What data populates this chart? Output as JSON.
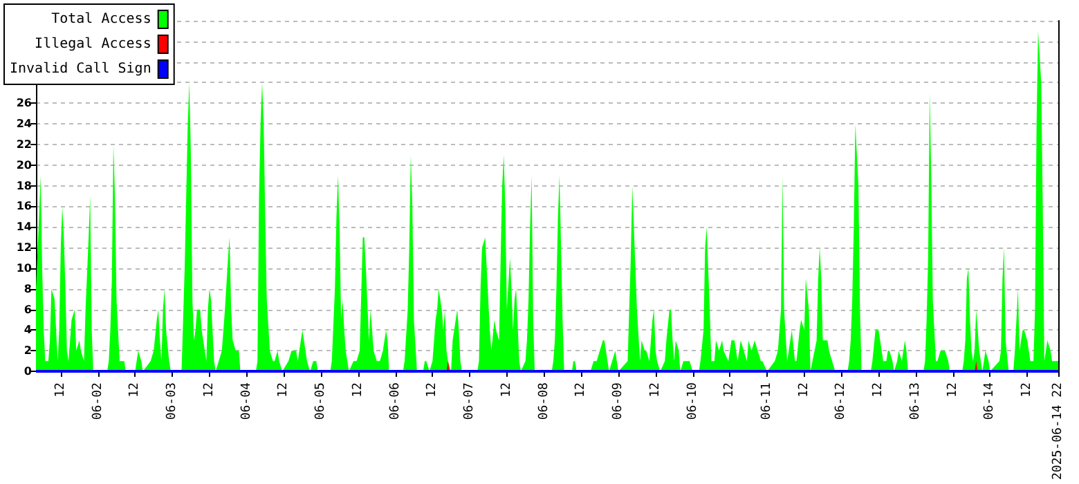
{
  "chart_data": {
    "type": "area",
    "series": [
      {
        "name": "Total Access",
        "color": "#00ff00",
        "x": [
          "2025-06-01T04:00",
          "2025-06-01T05:00",
          "2025-06-01T05:30",
          "2025-06-01T06:00",
          "2025-06-01T06:30",
          "2025-06-01T07:00",
          "2025-06-01T08:00",
          "2025-06-01T08:30",
          "2025-06-01T09:00",
          "2025-06-01T10:00",
          "2025-06-01T10:30",
          "2025-06-01T11:00",
          "2025-06-01T11:30",
          "2025-06-01T12:00",
          "2025-06-01T12:30",
          "2025-06-01T13:00",
          "2025-06-01T13:30",
          "2025-06-01T14:00",
          "2025-06-01T14:30",
          "2025-06-01T15:30",
          "2025-06-01T16:30",
          "2025-06-01T17:00",
          "2025-06-01T18:00",
          "2025-06-01T18:30",
          "2025-06-01T19:30",
          "2025-06-01T20:00",
          "2025-06-01T21:00",
          "2025-06-01T21:30",
          "2025-06-01T22:00",
          "2025-06-01T22:30",
          "2025-06-02T03:00",
          "2025-06-02T03:30",
          "2025-06-02T04:00",
          "2025-06-02T04:30",
          "2025-06-02T05:00",
          "2025-06-02T05:30",
          "2025-06-02T06:00",
          "2025-06-02T07:00",
          "2025-06-02T08:30",
          "2025-06-02T09:00",
          "2025-06-02T12:00",
          "2025-06-02T12:30",
          "2025-06-02T13:00",
          "2025-06-02T14:00",
          "2025-06-02T14:30",
          "2025-06-02T17:00",
          "2025-06-02T18:00",
          "2025-06-02T19:00",
          "2025-06-02T19:30",
          "2025-06-02T20:00",
          "2025-06-02T20:30",
          "2025-06-02T21:00",
          "2025-06-02T21:30",
          "2025-06-02T22:00",
          "2025-06-02T23:00",
          "2025-06-02T23:30",
          "2025-06-03T03:00",
          "2025-06-03T03:30",
          "2025-06-03T04:00",
          "2025-06-03T04:30",
          "2025-06-03T05:00",
          "2025-06-03T05:30",
          "2025-06-03T06:00",
          "2025-06-03T06:30",
          "2025-06-03T07:00",
          "2025-06-03T07:30",
          "2025-06-03T08:00",
          "2025-06-03T09:00",
          "2025-06-03T09:30",
          "2025-06-03T10:30",
          "2025-06-03T11:00",
          "2025-06-03T11:30",
          "2025-06-03T12:00",
          "2025-06-03T12:30",
          "2025-06-03T13:30",
          "2025-06-03T14:00",
          "2025-06-03T15:00",
          "2025-06-03T16:00",
          "2025-06-03T17:00",
          "2025-06-03T18:00",
          "2025-06-03T18:30",
          "2025-06-03T19:00",
          "2025-06-03T19:30",
          "2025-06-03T20:30",
          "2025-06-03T21:30",
          "2025-06-03T22:00",
          "2025-06-04T03:00",
          "2025-06-04T03:30",
          "2025-06-04T04:00",
          "2025-06-04T04:30",
          "2025-06-04T05:00",
          "2025-06-04T05:30",
          "2025-06-04T06:00",
          "2025-06-04T06:30",
          "2025-06-04T07:30",
          "2025-06-04T08:30",
          "2025-06-04T09:00",
          "2025-06-04T10:00",
          "2025-06-04T10:30",
          "2025-06-04T11:30",
          "2025-06-04T13:30",
          "2025-06-04T14:30",
          "2025-06-04T16:00",
          "2025-06-04T16:30",
          "2025-06-04T17:30",
          "2025-06-04T18:00",
          "2025-06-04T18:30",
          "2025-06-04T19:30",
          "2025-06-04T20:30",
          "2025-06-04T21:30",
          "2025-06-04T22:30",
          "2025-06-04T23:00",
          "2025-06-05T03:00",
          "2025-06-05T03:30",
          "2025-06-05T04:30",
          "2025-06-05T05:00",
          "2025-06-05T05:30",
          "2025-06-05T06:00",
          "2025-06-05T06:30",
          "2025-06-05T07:00",
          "2025-06-05T07:30",
          "2025-06-05T08:00",
          "2025-06-05T09:00",
          "2025-06-05T10:30",
          "2025-06-05T11:30",
          "2025-06-05T12:30",
          "2025-06-05T13:30",
          "2025-06-05T14:00",
          "2025-06-05T14:30",
          "2025-06-05T15:30",
          "2025-06-05T16:00",
          "2025-06-05T16:30",
          "2025-06-05T17:00",
          "2025-06-05T18:00",
          "2025-06-05T19:00",
          "2025-06-05T20:00",
          "2025-06-05T21:00",
          "2025-06-05T21:30",
          "2025-06-05T22:00",
          "2025-06-06T02:30",
          "2025-06-06T03:00",
          "2025-06-06T04:00",
          "2025-06-06T04:30",
          "2025-06-06T05:00",
          "2025-06-06T05:30",
          "2025-06-06T06:00",
          "2025-06-06T07:00",
          "2025-06-06T09:00",
          "2025-06-06T09:30",
          "2025-06-06T10:00",
          "2025-06-06T11:00",
          "2025-06-06T12:00",
          "2025-06-06T13:00",
          "2025-06-06T13:30",
          "2025-06-06T14:00",
          "2025-06-06T15:00",
          "2025-06-06T15:30",
          "2025-06-06T16:00",
          "2025-06-06T16:30",
          "2025-06-06T17:00",
          "2025-06-06T18:00",
          "2025-06-06T18:30",
          "2025-06-06T19:30",
          "2025-06-06T20:00",
          "2025-06-06T20:30",
          "2025-06-06T21:00",
          "2025-06-06T21:30",
          "2025-06-07T02:30",
          "2025-06-07T03:00",
          "2025-06-07T03:30",
          "2025-06-07T04:00",
          "2025-06-07T05:00",
          "2025-06-07T05:30",
          "2025-06-07T06:30",
          "2025-06-07T07:00",
          "2025-06-07T08:00",
          "2025-06-07T08:30",
          "2025-06-07T09:30",
          "2025-06-07T10:00",
          "2025-06-07T10:30",
          "2025-06-07T11:00",
          "2025-06-07T11:30",
          "2025-06-07T12:00",
          "2025-06-07T13:00",
          "2025-06-07T13:30",
          "2025-06-07T14:00",
          "2025-06-07T14:30",
          "2025-06-07T15:00",
          "2025-06-07T16:00",
          "2025-06-07T16:30",
          "2025-06-07T18:00",
          "2025-06-07T18:30",
          "2025-06-07T19:00",
          "2025-06-07T19:30",
          "2025-06-07T20:00",
          "2025-06-07T20:30",
          "2025-06-07T21:00",
          "2025-06-08T02:30",
          "2025-06-08T03:00",
          "2025-06-08T03:30",
          "2025-06-08T04:00",
          "2025-06-08T04:30",
          "2025-06-08T05:00",
          "2025-06-08T06:00",
          "2025-06-08T06:30",
          "2025-06-08T09:00",
          "2025-06-08T09:30",
          "2025-06-08T10:00",
          "2025-06-08T10:30",
          "2025-06-08T15:00",
          "2025-06-08T16:00",
          "2025-06-08T17:00",
          "2025-06-08T18:00",
          "2025-06-08T19:00",
          "2025-06-08T19:30",
          "2025-06-08T20:00",
          "2025-06-08T21:00",
          "2025-06-08T22:00",
          "2025-06-08T23:00",
          "2025-06-08T23:30",
          "2025-06-09T00:00",
          "2025-06-09T03:00",
          "2025-06-09T03:30",
          "2025-06-09T04:00",
          "2025-06-09T04:30",
          "2025-06-09T05:00",
          "2025-06-09T06:00",
          "2025-06-09T07:00",
          "2025-06-09T07:30",
          "2025-06-09T08:30",
          "2025-06-09T09:00",
          "2025-06-09T10:00",
          "2025-06-09T10:30",
          "2025-06-09T11:00",
          "2025-06-09T11:30",
          "2025-06-09T12:00",
          "2025-06-09T12:30",
          "2025-06-09T13:30",
          "2025-06-09T15:00",
          "2025-06-09T15:30",
          "2025-06-09T16:30",
          "2025-06-09T17:00",
          "2025-06-09T17:30",
          "2025-06-09T18:00",
          "2025-06-09T18:30",
          "2025-06-09T19:30",
          "2025-06-09T20:00",
          "2025-06-09T21:00",
          "2025-06-09T22:00",
          "2025-06-09T23:00",
          "2025-06-10T00:00",
          "2025-06-10T02:00",
          "2025-06-10T02:30",
          "2025-06-10T03:30",
          "2025-06-10T04:00",
          "2025-06-10T04:30",
          "2025-06-10T05:30",
          "2025-06-10T06:00",
          "2025-06-10T07:00",
          "2025-06-10T07:30",
          "2025-06-10T08:30",
          "2025-06-10T09:30",
          "2025-06-10T10:00",
          "2025-06-10T11:30",
          "2025-06-10T12:30",
          "2025-06-10T13:30",
          "2025-06-10T14:30",
          "2025-06-10T15:30",
          "2025-06-10T16:30",
          "2025-06-10T17:30",
          "2025-06-10T18:00",
          "2025-06-10T19:00",
          "2025-06-10T20:00",
          "2025-06-10T21:00",
          "2025-06-10T22:00",
          "2025-06-10T22:30",
          "2025-06-11T00:00",
          "2025-06-11T02:30",
          "2025-06-11T03:30",
          "2025-06-11T04:30",
          "2025-06-11T05:00",
          "2025-06-11T05:30",
          "2025-06-11T06:30",
          "2025-06-11T07:30",
          "2025-06-11T08:00",
          "2025-06-11T09:00",
          "2025-06-11T09:30",
          "2025-06-11T10:30",
          "2025-06-11T11:00",
          "2025-06-11T12:00",
          "2025-06-11T12:30",
          "2025-06-11T13:30",
          "2025-06-11T14:00",
          "2025-06-11T16:00",
          "2025-06-11T16:30",
          "2025-06-11T17:00",
          "2025-06-11T17:30",
          "2025-06-11T18:00",
          "2025-06-11T19:00",
          "2025-06-11T19:30",
          "2025-06-11T20:00",
          "2025-06-11T21:00",
          "2025-06-11T22:00",
          "2025-06-12T02:00",
          "2025-06-12T02:30",
          "2025-06-12T03:00",
          "2025-06-12T03:30",
          "2025-06-12T04:00",
          "2025-06-12T04:30",
          "2025-06-12T05:30",
          "2025-06-12T06:00",
          "2025-06-12T06:30",
          "2025-06-12T09:30",
          "2025-06-12T10:00",
          "2025-06-12T11:00",
          "2025-06-12T12:00",
          "2025-06-12T12:30",
          "2025-06-12T13:00",
          "2025-06-12T13:30",
          "2025-06-12T14:30",
          "2025-06-12T15:00",
          "2025-06-12T15:30",
          "2025-06-12T16:30",
          "2025-06-12T17:00",
          "2025-06-12T18:00",
          "2025-06-12T18:30",
          "2025-06-12T19:30",
          "2025-06-12T20:30",
          "2025-06-12T21:00",
          "2025-06-12T21:30",
          "2025-06-13T02:30",
          "2025-06-13T03:00",
          "2025-06-13T03:30",
          "2025-06-13T04:00",
          "2025-06-13T04:30",
          "2025-06-13T05:00",
          "2025-06-13T05:30",
          "2025-06-13T06:30",
          "2025-06-13T07:00",
          "2025-06-13T08:00",
          "2025-06-13T08:30",
          "2025-06-13T09:30",
          "2025-06-13T10:30",
          "2025-06-13T11:00",
          "2025-06-13T15:00",
          "2025-06-13T15:30",
          "2025-06-13T16:00",
          "2025-06-13T16:30",
          "2025-06-13T17:00",
          "2025-06-13T17:30",
          "2025-06-13T18:00",
          "2025-06-13T18:30",
          "2025-06-13T19:00",
          "2025-06-13T19:30",
          "2025-06-13T20:30",
          "2025-06-13T21:00",
          "2025-06-13T21:30",
          "2025-06-13T22:00",
          "2025-06-13T22:30",
          "2025-06-13T23:30",
          "2025-06-14T00:00",
          "2025-06-14T03:00",
          "2025-06-14T03:30",
          "2025-06-14T04:00",
          "2025-06-14T04:30",
          "2025-06-14T05:00",
          "2025-06-14T06:00",
          "2025-06-14T07:30",
          "2025-06-14T08:00",
          "2025-06-14T09:00",
          "2025-06-14T09:30",
          "2025-06-14T10:30",
          "2025-06-14T11:00",
          "2025-06-14T12:00",
          "2025-06-14T13:00",
          "2025-06-14T14:00",
          "2025-06-14T14:30",
          "2025-06-14T15:00",
          "2025-06-14T15:30",
          "2025-06-14T16:30",
          "2025-06-14T17:00",
          "2025-06-14T17:30",
          "2025-06-14T18:00",
          "2025-06-14T18:30",
          "2025-06-14T19:30",
          "2025-06-14T20:00",
          "2025-06-14T21:30",
          "2025-06-14T22:00"
        ],
        "values": [
          8,
          15,
          19,
          10,
          4,
          1,
          1,
          3,
          8,
          7,
          4,
          1,
          4,
          12,
          16,
          13,
          8,
          2,
          1,
          5,
          6,
          2,
          3,
          2,
          1,
          6,
          13,
          17,
          4,
          0,
          0,
          1,
          4,
          9,
          22,
          17,
          7,
          1,
          1,
          0,
          0,
          1,
          2,
          1,
          0,
          1,
          2,
          5,
          6,
          3,
          1,
          6,
          8,
          4,
          1,
          0,
          0,
          5,
          10,
          17,
          24,
          28,
          21,
          7,
          3,
          4,
          6,
          6,
          4,
          2,
          1,
          6,
          8,
          7,
          1,
          0,
          1,
          2,
          6,
          11,
          13,
          6,
          3,
          2,
          2,
          0,
          0,
          1,
          17,
          24,
          28,
          24,
          15,
          7,
          2,
          1,
          1,
          2,
          1,
          0,
          1,
          2,
          2,
          1,
          3,
          4,
          3,
          1,
          0,
          1,
          1,
          0,
          0,
          1,
          8,
          15,
          19,
          14,
          5,
          7,
          4,
          2,
          0,
          1,
          1,
          2,
          13,
          13,
          10,
          3,
          6,
          4,
          2,
          1,
          1,
          2,
          4,
          3,
          0,
          0,
          1,
          6,
          12,
          21,
          16,
          5,
          0,
          0,
          1,
          1,
          0,
          1,
          5,
          6,
          8,
          6,
          4,
          6,
          2,
          1,
          0,
          3,
          5,
          6,
          4,
          1,
          0,
          0,
          1,
          8,
          12,
          13,
          10,
          4,
          2,
          5,
          4,
          3,
          11,
          18,
          21,
          16,
          6,
          11,
          8,
          4,
          7,
          8,
          1,
          0,
          1,
          3,
          7,
          14,
          19,
          5,
          0,
          0,
          1,
          3,
          8,
          15,
          19,
          5,
          0,
          0,
          1,
          1,
          0,
          0,
          1,
          1,
          2,
          3,
          3,
          2,
          0,
          1,
          2,
          1,
          0,
          1,
          6,
          11,
          18,
          14,
          6,
          1,
          3,
          2,
          2,
          1,
          3,
          5,
          6,
          2,
          1,
          0,
          1,
          3,
          6,
          6,
          3,
          1,
          3,
          2,
          0,
          1,
          1,
          1,
          0,
          0,
          1,
          4,
          12,
          14,
          6,
          1,
          1,
          3,
          2,
          3,
          2,
          1,
          3,
          3,
          1,
          3,
          2,
          1,
          3,
          2,
          3,
          2,
          1,
          1,
          0,
          1,
          2,
          6,
          19,
          6,
          1,
          3,
          4,
          1,
          1,
          4,
          5,
          4,
          9,
          6,
          0,
          3,
          9,
          12,
          9,
          3,
          3,
          3,
          2,
          1,
          0,
          0,
          1,
          3,
          7,
          14,
          24,
          18,
          6,
          0,
          0,
          1,
          4,
          4,
          3,
          2,
          1,
          1,
          2,
          2,
          1,
          0,
          1,
          2,
          1,
          3,
          2,
          0,
          0,
          1,
          5,
          11,
          27,
          19,
          7,
          1,
          1,
          2,
          2,
          2,
          1,
          0,
          0,
          1,
          3,
          9,
          10,
          5,
          2,
          1,
          2,
          6,
          2,
          1,
          0,
          1,
          2,
          1,
          0,
          1,
          2,
          9,
          12,
          3,
          0,
          0,
          2,
          8,
          2,
          4,
          4,
          3,
          1,
          1,
          6,
          24,
          33,
          28,
          16,
          1,
          2,
          3,
          2,
          1,
          1,
          1
        ]
      },
      {
        "name": "Illegal Access",
        "color": "#ff0000",
        "x": [
          "2025-06-01T04:00",
          "2025-06-06T16:30",
          "2025-06-06T17:00",
          "2025-06-06T17:30",
          "2025-06-13T19:00",
          "2025-06-13T19:30",
          "2025-06-13T20:00",
          "2025-06-14T22:00"
        ],
        "values": [
          0,
          0,
          1,
          0,
          0,
          1,
          0,
          0
        ]
      },
      {
        "name": "Invalid Call Sign",
        "color": "#0000ff",
        "type": "line",
        "x": [
          "2025-06-01T04:00",
          "2025-06-14T22:00"
        ],
        "values": [
          0,
          0
        ]
      }
    ],
    "xlim": [
      "2025-06-01T04:00",
      "2025-06-14T22:00"
    ],
    "xticks": [
      {
        "value": "2025-06-01T12:00",
        "label": "12"
      },
      {
        "value": "2025-06-02T00:00",
        "label": "06-02"
      },
      {
        "value": "2025-06-02T12:00",
        "label": "12"
      },
      {
        "value": "2025-06-03T00:00",
        "label": "06-03"
      },
      {
        "value": "2025-06-03T12:00",
        "label": "12"
      },
      {
        "value": "2025-06-04T00:00",
        "label": "06-04"
      },
      {
        "value": "2025-06-04T12:00",
        "label": "12"
      },
      {
        "value": "2025-06-05T00:00",
        "label": "06-05"
      },
      {
        "value": "2025-06-05T12:00",
        "label": "12"
      },
      {
        "value": "2025-06-06T00:00",
        "label": "06-06"
      },
      {
        "value": "2025-06-06T12:00",
        "label": "12"
      },
      {
        "value": "2025-06-07T00:00",
        "label": "06-07"
      },
      {
        "value": "2025-06-07T12:00",
        "label": "12"
      },
      {
        "value": "2025-06-08T00:00",
        "label": "06-08"
      },
      {
        "value": "2025-06-08T12:00",
        "label": "12"
      },
      {
        "value": "2025-06-09T00:00",
        "label": "06-09"
      },
      {
        "value": "2025-06-09T12:00",
        "label": "12"
      },
      {
        "value": "2025-06-10T00:00",
        "label": "06-10"
      },
      {
        "value": "2025-06-10T12:00",
        "label": "12"
      },
      {
        "value": "2025-06-11T00:00",
        "label": "06-11"
      },
      {
        "value": "2025-06-11T12:00",
        "label": "12"
      },
      {
        "value": "2025-06-12T00:00",
        "label": "06-12"
      },
      {
        "value": "2025-06-12T12:00",
        "label": "12"
      },
      {
        "value": "2025-06-13T00:00",
        "label": "06-13"
      },
      {
        "value": "2025-06-13T12:00",
        "label": "12"
      },
      {
        "value": "2025-06-14T00:00",
        "label": "06-14"
      },
      {
        "value": "2025-06-14T12:00",
        "label": "12"
      },
      {
        "value": "2025-06-14T22:00",
        "label": "2025-06-14 22"
      }
    ],
    "ylim": [
      0,
      34
    ],
    "yticks": [
      0,
      2,
      4,
      6,
      8,
      10,
      12,
      14,
      16,
      18,
      20,
      22,
      24,
      26,
      {
        "value": 28,
        "label": null
      },
      {
        "value": 30,
        "label": null
      },
      {
        "value": 32,
        "label": null
      },
      {
        "value": 34,
        "label": null
      }
    ],
    "grid": "y",
    "legend": "top left",
    "marker": "none"
  }
}
